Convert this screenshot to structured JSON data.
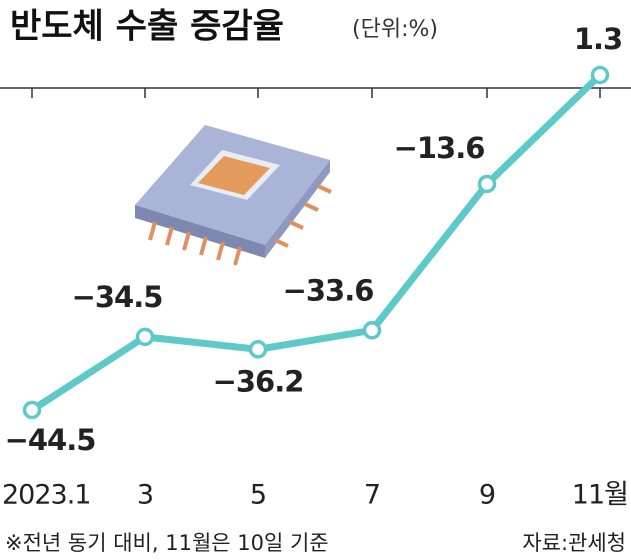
{
  "chart_data": {
    "type": "line",
    "title": "반도체 수출 증감율",
    "subtitle": "(단위:%)",
    "categories": [
      "2023.1",
      "3",
      "5",
      "7",
      "9",
      "11월"
    ],
    "values": [
      -44.5,
      -34.5,
      -36.2,
      -33.6,
      -13.6,
      1.3
    ],
    "value_labels": [
      "−44.5",
      "−34.5",
      "−36.2",
      "−33.6",
      "−13.6",
      "1.3"
    ],
    "color": "#5ec9c9",
    "note": "※전년 동기 대비, 11월은 10일 기준",
    "source": "자료:관세청"
  }
}
